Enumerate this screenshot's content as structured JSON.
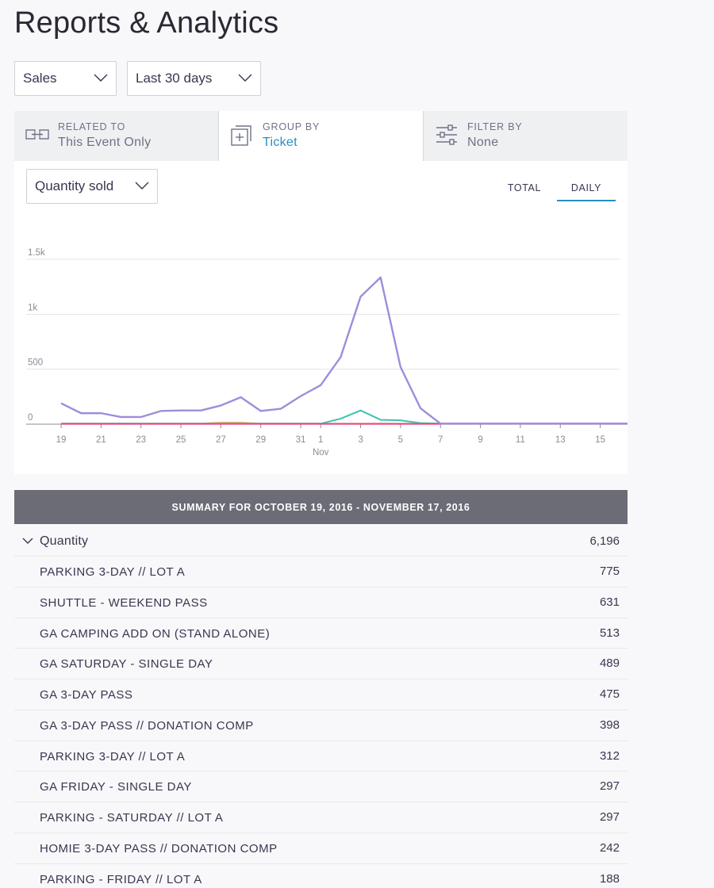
{
  "page": {
    "title": "Reports & Analytics"
  },
  "filters": {
    "report_type": "Sales",
    "date_range": "Last 30 days"
  },
  "tabs": [
    {
      "kicker": "RELATED TO",
      "value": "This Event Only",
      "icon": "related-link-icon",
      "active": false
    },
    {
      "kicker": "GROUP BY",
      "value": "Ticket",
      "icon": "group-add-icon",
      "active": true
    },
    {
      "kicker": "FILTER BY",
      "value": "None",
      "icon": "filter-sliders-icon",
      "active": false
    }
  ],
  "chart_controls": {
    "metric": "Quantity sold",
    "total_label": "TOTAL",
    "daily_label": "DAILY",
    "selected": "DAILY"
  },
  "colors": {
    "accent": "#2a8ec2",
    "series_main": "#9e8ddc",
    "series_teal": "#3fc1b4",
    "series_pink": "#e8487f",
    "series_orange": "#f2b97a",
    "summary_bar": "#6b6c76"
  },
  "chart_data": {
    "type": "line",
    "x": [
      "Oct 19",
      "Oct 20",
      "Oct 21",
      "Oct 22",
      "Oct 23",
      "Oct 24",
      "Oct 25",
      "Oct 26",
      "Oct 27",
      "Oct 28",
      "Oct 29",
      "Oct 30",
      "Oct 31",
      "Nov 1",
      "Nov 2",
      "Nov 3",
      "Nov 4",
      "Nov 5",
      "Nov 6",
      "Nov 7",
      "Nov 8",
      "Nov 9",
      "Nov 10",
      "Nov 11",
      "Nov 12",
      "Nov 13",
      "Nov 14",
      "Nov 15",
      "Nov 16",
      "Nov 17"
    ],
    "x_tick_labels": [
      {
        "x": "Oct 19",
        "label": "19"
      },
      {
        "x": "Oct 21",
        "label": "21"
      },
      {
        "x": "Oct 23",
        "label": "23"
      },
      {
        "x": "Oct 25",
        "label": "25"
      },
      {
        "x": "Oct 27",
        "label": "27"
      },
      {
        "x": "Oct 29",
        "label": "29"
      },
      {
        "x": "Oct 31",
        "label": "31"
      },
      {
        "x": "Nov 1",
        "label": "1"
      },
      {
        "x": "Nov 3",
        "label": "3"
      },
      {
        "x": "Nov 5",
        "label": "5"
      },
      {
        "x": "Nov 7",
        "label": "7"
      },
      {
        "x": "Nov 9",
        "label": "9"
      },
      {
        "x": "Nov 11",
        "label": "11"
      },
      {
        "x": "Nov 13",
        "label": "13"
      },
      {
        "x": "Nov 15",
        "label": "15"
      }
    ],
    "month_label": {
      "x": "Nov 1",
      "label": "Nov"
    },
    "y_ticks": [
      {
        "value": 0,
        "label": "0"
      },
      {
        "value": 500,
        "label": "500"
      },
      {
        "value": 1000,
        "label": "1k"
      },
      {
        "value": 1500,
        "label": "1.5k"
      }
    ],
    "ylim": [
      0,
      1500
    ],
    "grid": true,
    "series": [
      {
        "color": "#9e8ddc",
        "values": [
          190,
          100,
          100,
          65,
          65,
          120,
          125,
          125,
          170,
          245,
          120,
          140,
          255,
          355,
          610,
          1160,
          1335,
          520,
          145,
          5,
          5,
          5,
          5,
          5,
          5,
          5,
          5,
          5,
          5,
          5
        ]
      },
      {
        "color": "#3fc1b4",
        "values": [
          5,
          5,
          5,
          5,
          5,
          5,
          5,
          5,
          5,
          5,
          5,
          5,
          5,
          5,
          50,
          125,
          40,
          35,
          10,
          5,
          5,
          5,
          5,
          5,
          5,
          5,
          5,
          5,
          5,
          5
        ]
      },
      {
        "color": "#f2b97a",
        "values": [
          5,
          5,
          5,
          5,
          5,
          5,
          5,
          5,
          15,
          15,
          5,
          5,
          5,
          5,
          5,
          5,
          5,
          5,
          5,
          5,
          5,
          5,
          5,
          5,
          5,
          5,
          5,
          5,
          5,
          5
        ]
      },
      {
        "color": "#e8487f",
        "values": [
          3,
          3,
          3,
          3,
          3,
          3,
          3,
          3,
          3,
          3,
          3,
          3,
          3,
          3,
          3,
          3,
          3,
          3,
          3,
          3,
          3,
          3,
          3,
          3,
          3,
          3,
          3,
          3,
          3,
          3
        ]
      }
    ]
  },
  "summary": {
    "title": "SUMMARY FOR OCTOBER 19, 2016 - NOVEMBER 17, 2016",
    "group_label": "Quantity",
    "group_total": "6,196",
    "rows": [
      {
        "name": "PARKING 3-DAY // LOT A",
        "value": "775"
      },
      {
        "name": "SHUTTLE - WEEKEND PASS",
        "value": "631"
      },
      {
        "name": "GA CAMPING ADD ON (STAND ALONE)",
        "value": "513"
      },
      {
        "name": "GA SATURDAY - SINGLE DAY",
        "value": "489"
      },
      {
        "name": "GA 3-DAY PASS",
        "value": "475"
      },
      {
        "name": "GA 3-DAY PASS // DONATION COMP",
        "value": "398"
      },
      {
        "name": "PARKING 3-DAY // LOT A",
        "value": "312"
      },
      {
        "name": "GA FRIDAY - SINGLE DAY",
        "value": "297"
      },
      {
        "name": "PARKING - SATURDAY // LOT A",
        "value": "297"
      },
      {
        "name": "HOMIE 3-DAY PASS // DONATION COMP",
        "value": "242"
      },
      {
        "name": "PARKING - FRIDAY // LOT A",
        "value": "188"
      }
    ]
  }
}
